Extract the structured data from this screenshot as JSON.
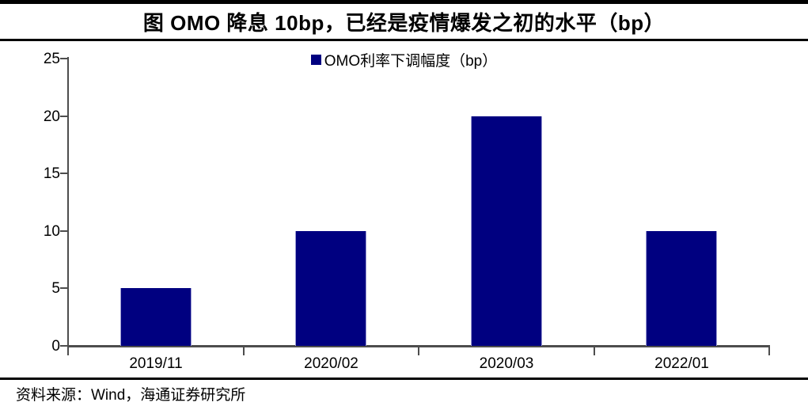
{
  "header": {
    "title": "图  OMO 降息 10bp，已经是疫情爆发之初的水平（bp）"
  },
  "legend": {
    "label": "OMO利率下调幅度（bp）",
    "marker_color": "#000080"
  },
  "footer": {
    "source": "资料来源：Wind，海通证券研究所"
  },
  "chart_data": {
    "type": "bar",
    "title": "图 OMO 降息 10bp，已经是疫情爆发之初的水平（bp）",
    "categories": [
      "2019/11",
      "2020/02",
      "2020/03",
      "2022/01"
    ],
    "series": [
      {
        "name": "OMO利率下调幅度（bp）",
        "values": [
          5,
          10,
          20,
          10
        ]
      }
    ],
    "xlabel": "",
    "ylabel": "",
    "ylim": [
      0,
      25
    ],
    "yticks": [
      0,
      5,
      10,
      15,
      20,
      25
    ],
    "grid": false,
    "legend_position": "top-center",
    "bar_color": "#000080",
    "axis_color": "#4d4d4d"
  }
}
